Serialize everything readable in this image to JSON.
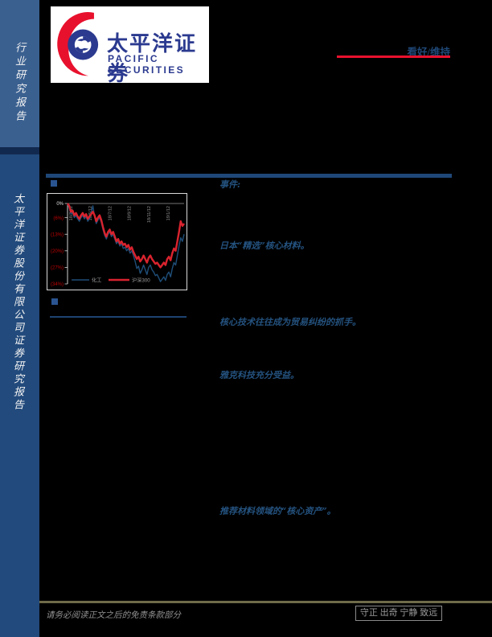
{
  "sidebar": {
    "top_label": "行业研究报告",
    "bottom_label": "太平洋证券股份有限公司证券研究报告"
  },
  "header": {
    "logo_cn": "太平洋证券",
    "logo_en": "PACIFIC  SECURITIES",
    "rating_label": "看好/维持",
    "rating_underline_color": "#E8112D"
  },
  "content": {
    "event_label": "事件:",
    "highlights": [
      "日本“精选”核心材料。",
      "核心技术往往成为贸易纠纷的抓手。",
      "雅克科技充分受益。",
      "推荐材料领域的“核心资产”。"
    ]
  },
  "chart_data": {
    "type": "line",
    "title": "",
    "xlabel": "",
    "ylabel": "",
    "ylim": [
      -34,
      0
    ],
    "grid": "zero-line-only",
    "legend_position": "bottom",
    "x_tick_labels": [
      "18/3/12",
      "18/5/12",
      "18/7/12",
      "18/9/12",
      "18/11/12",
      "19/1/12"
    ],
    "y_tick_labels": [
      "0%",
      "(6%)",
      "(13%)",
      "(20%)",
      "(27%)",
      "(34%)"
    ],
    "y_values": [
      0,
      -6,
      -13,
      -20,
      -27,
      -34
    ],
    "y_label_colors": [
      "#e0e0e0",
      "#c00000",
      "#c00000",
      "#c00000",
      "#c00000",
      "#c00000"
    ],
    "axis_color": "#cfcfcf",
    "x_label_color": "#8f8f8f",
    "legend_text_color": "#9a9a9a",
    "series": [
      {
        "name": "化工",
        "color": "#1f4e79",
        "values": [
          0,
          -2,
          -4.5,
          -4,
          -6,
          -5,
          -6.5,
          -7.5,
          -6,
          -5,
          -6.5,
          -5.5,
          -7.5,
          -6.5,
          -4,
          -1,
          -5.5,
          -8.5,
          -7,
          -6,
          -8,
          -11,
          -13.5,
          -15,
          -13,
          -12,
          -14,
          -13,
          -15,
          -17,
          -16,
          -18,
          -17,
          -19,
          -18.5,
          -20,
          -19,
          -21,
          -20,
          -22,
          -24.5,
          -27.5,
          -26.5,
          -29.5,
          -28,
          -26,
          -28,
          -30,
          -27,
          -26,
          -28,
          -29,
          -30.5,
          -30,
          -31.5,
          -33,
          -32,
          -31,
          -32.5,
          -30,
          -29,
          -31,
          -27.5,
          -25,
          -26,
          -22,
          -18,
          -14.5,
          -16,
          -13
        ]
      },
      {
        "name": "沪深300",
        "color": "#d9232e",
        "values": [
          0,
          -1,
          -3.5,
          -3,
          -5,
          -4,
          -5.5,
          -6.5,
          -5,
          -4,
          -5.5,
          -4.5,
          -6.5,
          -5.5,
          -4.5,
          -3.5,
          -5,
          -7.5,
          -6,
          -5,
          -7,
          -10,
          -12.5,
          -14,
          -12,
          -11,
          -13,
          -12,
          -14,
          -16,
          -15,
          -17,
          -16,
          -17.5,
          -17,
          -18.5,
          -17.5,
          -19.5,
          -18.5,
          -20.5,
          -22,
          -23.5,
          -22.5,
          -24.5,
          -23.5,
          -22,
          -23.5,
          -25,
          -23,
          -22,
          -23.5,
          -24.5,
          -25.5,
          -25,
          -26,
          -27,
          -26,
          -25,
          -26,
          -23.5,
          -22.5,
          -24,
          -21,
          -19,
          -20,
          -16,
          -12,
          -7.5,
          -9.5,
          -8.5
        ]
      }
    ]
  },
  "footer": {
    "disclaimer": "请务必阅读正文之后的免责条款部分",
    "motto": "守正 出奇 宁静 致远"
  }
}
